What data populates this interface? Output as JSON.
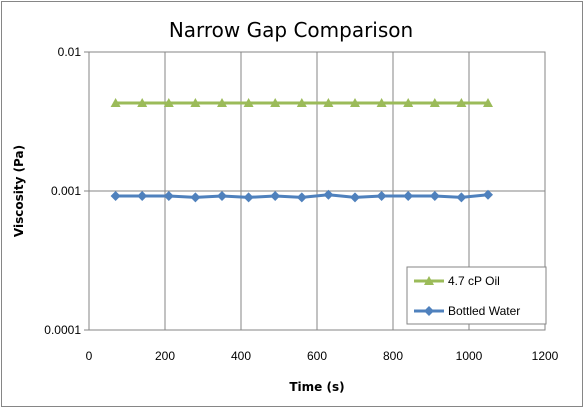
{
  "chart_data": {
    "type": "line",
    "title": "Narrow Gap Comparison",
    "xlabel": "Time (s)",
    "ylabel": "Viscosity (Pa)",
    "xlim": [
      0,
      1200
    ],
    "ylim": [
      0.0001,
      0.01
    ],
    "yscale": "log",
    "x_ticks": [
      "0",
      "200",
      "400",
      "600",
      "800",
      "1000",
      "1200"
    ],
    "y_ticks": [
      "0.01",
      "0.001",
      "0.0001"
    ],
    "grid": true,
    "legend_position": "bottom-right",
    "series": [
      {
        "name": "4.7 cP Oil",
        "color": "#9BBB59",
        "marker": "triangle",
        "x": [
          70,
          140,
          210,
          280,
          350,
          420,
          490,
          560,
          630,
          700,
          770,
          840,
          910,
          980,
          1050
        ],
        "y": [
          0.0043,
          0.0043,
          0.0043,
          0.0043,
          0.0043,
          0.0043,
          0.0043,
          0.0043,
          0.0043,
          0.0043,
          0.0043,
          0.0043,
          0.0043,
          0.0043,
          0.0043
        ]
      },
      {
        "name": "Bottled Water",
        "color": "#4F81BD",
        "marker": "diamond",
        "x": [
          70,
          140,
          210,
          280,
          350,
          420,
          490,
          560,
          630,
          700,
          770,
          840,
          910,
          980,
          1050
        ],
        "y": [
          0.00092,
          0.00092,
          0.00092,
          0.0009,
          0.00092,
          0.0009,
          0.00092,
          0.0009,
          0.00094,
          0.0009,
          0.00092,
          0.00092,
          0.00092,
          0.0009,
          0.00094
        ]
      }
    ]
  }
}
